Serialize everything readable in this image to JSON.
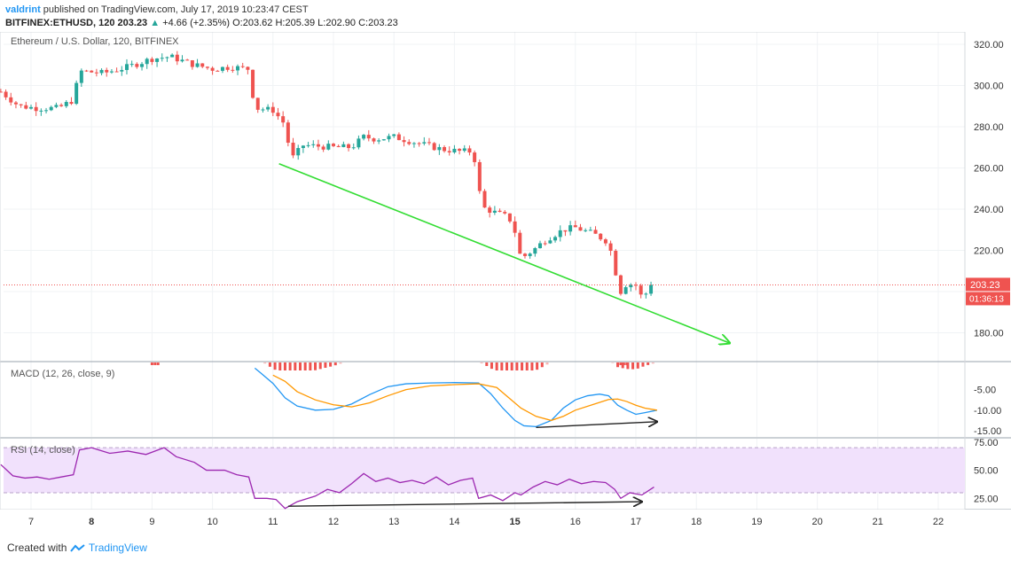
{
  "header": {
    "user": "valdrint",
    "published": "published on TradingView.com, July 17, 2019 10:23:47 CEST",
    "symbol": "BITFINEX:ETHUSD, 120",
    "last": "203.23",
    "change_arrow": "▲",
    "change": "+4.66 (+2.35%)",
    "o_label": "O:",
    "o": "203.62",
    "h_label": "H:",
    "h": "205.39",
    "l_label": "L:",
    "l": "202.90",
    "c_label": "C:",
    "c": "203.23"
  },
  "footer": {
    "created_with": "Created with",
    "brand": "TradingView"
  },
  "colors": {
    "up": "#26a69a",
    "down": "#ef5350",
    "trend": "#33dd33",
    "arrow": "#222222",
    "macd": "#2196f3",
    "signal": "#ff9800",
    "rsi": "#9c27b0",
    "rsi_band": "#f1e1fc"
  },
  "chart_data": [
    {
      "type": "candlestick",
      "title": "Ethereum / U.S. Dollar, 120, BITFINEX",
      "x_ticks": [
        "7",
        "8",
        "9",
        "10",
        "11",
        "12",
        "13",
        "14",
        "15",
        "16",
        "17",
        "18",
        "19",
        "20",
        "21",
        "22"
      ],
      "x_range": [
        6.5,
        22.3
      ],
      "y_ticks": [
        "320.00",
        "300.00",
        "280.00",
        "260.00",
        "240.00",
        "220.00",
        "180.00"
      ],
      "ylim": [
        166,
        326
      ],
      "last_price_label": "203.23",
      "countdown_label": "01:36:13",
      "last_price": 203.23,
      "path": [
        [
          6.5,
          297
        ],
        [
          6.8,
          290
        ],
        [
          7.1,
          289
        ],
        [
          7.45,
          289
        ],
        [
          7.7,
          293
        ],
        [
          7.8,
          307
        ],
        [
          8.2,
          306
        ],
        [
          8.6,
          309
        ],
        [
          9.0,
          313
        ],
        [
          9.3,
          314
        ],
        [
          9.7,
          310
        ],
        [
          10.0,
          308
        ],
        [
          10.3,
          309
        ],
        [
          10.6,
          308
        ],
        [
          10.7,
          289
        ],
        [
          11.0,
          288
        ],
        [
          11.2,
          281
        ],
        [
          11.3,
          264
        ],
        [
          11.5,
          271
        ],
        [
          12.0,
          270
        ],
        [
          12.3,
          270
        ],
        [
          12.5,
          275
        ],
        [
          12.7,
          274
        ],
        [
          13.0,
          275
        ],
        [
          13.4,
          272
        ],
        [
          13.8,
          269
        ],
        [
          14.1,
          268
        ],
        [
          14.3,
          268
        ],
        [
          14.35,
          262
        ],
        [
          14.45,
          241
        ],
        [
          14.7,
          238
        ],
        [
          14.9,
          236
        ],
        [
          15.0,
          229
        ],
        [
          15.05,
          222
        ],
        [
          15.1,
          216
        ],
        [
          15.3,
          220
        ],
        [
          15.5,
          225
        ],
        [
          15.8,
          230
        ],
        [
          16.0,
          231
        ],
        [
          16.3,
          228
        ],
        [
          16.55,
          224
        ],
        [
          16.65,
          211
        ],
        [
          16.75,
          200
        ],
        [
          16.85,
          204
        ],
        [
          17.0,
          203
        ],
        [
          17.1,
          197
        ],
        [
          17.3,
          203.2
        ]
      ],
      "lines": [
        {
          "name": "",
          "from": [
            11.1,
            262
          ],
          "to": [
            18.55,
            175
          ],
          "arrow": true
        }
      ]
    },
    {
      "type": "line",
      "title": "MACD (12, 26, close, 9)",
      "y_ticks": [
        "-5.00",
        "-10.00",
        "-15.00"
      ],
      "ylim": [
        -16.5,
        1.8
      ],
      "series": [
        {
          "key": "macd",
          "points": [
            [
              10.7,
              0.2
            ],
            [
              10.8,
              -1
            ],
            [
              11.0,
              -3.5
            ],
            [
              11.2,
              -7
            ],
            [
              11.4,
              -9
            ],
            [
              11.7,
              -10
            ],
            [
              12.0,
              -9.8
            ],
            [
              12.3,
              -8.5
            ],
            [
              12.6,
              -6.2
            ],
            [
              12.9,
              -4.3
            ],
            [
              13.2,
              -3.6
            ],
            [
              13.6,
              -3.4
            ],
            [
              14.0,
              -3.3
            ],
            [
              14.4,
              -3.4
            ],
            [
              14.6,
              -6
            ],
            [
              14.8,
              -9.5
            ],
            [
              15.0,
              -12.5
            ],
            [
              15.15,
              -13.8
            ],
            [
              15.35,
              -14
            ],
            [
              15.6,
              -12.5
            ],
            [
              15.8,
              -9.5
            ],
            [
              16.0,
              -7.5
            ],
            [
              16.2,
              -6.5
            ],
            [
              16.4,
              -6.1
            ],
            [
              16.55,
              -6.5
            ],
            [
              16.7,
              -8.8
            ],
            [
              16.85,
              -10
            ],
            [
              17.0,
              -11
            ],
            [
              17.15,
              -10.6
            ],
            [
              17.35,
              -10
            ]
          ]
        },
        {
          "key": "signal",
          "points": [
            [
              11.0,
              -1.5
            ],
            [
              11.2,
              -3
            ],
            [
              11.4,
              -5.5
            ],
            [
              11.7,
              -7.5
            ],
            [
              12.0,
              -8.7
            ],
            [
              12.3,
              -9.2
            ],
            [
              12.6,
              -8.2
            ],
            [
              12.9,
              -6.5
            ],
            [
              13.2,
              -5
            ],
            [
              13.6,
              -4.1
            ],
            [
              14.0,
              -3.8
            ],
            [
              14.4,
              -3.6
            ],
            [
              14.7,
              -4.5
            ],
            [
              14.9,
              -7
            ],
            [
              15.1,
              -9.5
            ],
            [
              15.35,
              -11.5
            ],
            [
              15.6,
              -12.5
            ],
            [
              15.8,
              -11.5
            ],
            [
              16.0,
              -10
            ],
            [
              16.3,
              -8.6
            ],
            [
              16.55,
              -7.4
            ],
            [
              16.7,
              -7.3
            ],
            [
              16.85,
              -7.9
            ],
            [
              17.0,
              -8.8
            ],
            [
              17.15,
              -9.5
            ],
            [
              17.35,
              -10
            ]
          ]
        }
      ],
      "histogram_note": "",
      "lines": [
        {
          "name": "",
          "from": [
            15.35,
            -14.2
          ],
          "to": [
            17.35,
            -12.8
          ],
          "arrow": true
        }
      ]
    },
    {
      "type": "line",
      "title": "RSI (14, close)",
      "y_ticks": [
        "75.00",
        "50.00",
        "25.00"
      ],
      "ylim": [
        15,
        78
      ],
      "band": [
        30,
        70
      ],
      "series": [
        {
          "key": "rsi",
          "points": [
            [
              6.5,
              55
            ],
            [
              6.7,
              45
            ],
            [
              6.9,
              43
            ],
            [
              7.1,
              44
            ],
            [
              7.3,
              42
            ],
            [
              7.5,
              44
            ],
            [
              7.7,
              46
            ],
            [
              7.8,
              68
            ],
            [
              8.0,
              70
            ],
            [
              8.3,
              65
            ],
            [
              8.6,
              67
            ],
            [
              8.9,
              64
            ],
            [
              9.2,
              70
            ],
            [
              9.4,
              62
            ],
            [
              9.7,
              57
            ],
            [
              9.9,
              50
            ],
            [
              10.2,
              50
            ],
            [
              10.4,
              46
            ],
            [
              10.6,
              44
            ],
            [
              10.7,
              25
            ],
            [
              10.9,
              25
            ],
            [
              11.05,
              24
            ],
            [
              11.2,
              16
            ],
            [
              11.4,
              22
            ],
            [
              11.7,
              27
            ],
            [
              11.9,
              33
            ],
            [
              12.1,
              30
            ],
            [
              12.3,
              38
            ],
            [
              12.5,
              47
            ],
            [
              12.7,
              40
            ],
            [
              12.9,
              43
            ],
            [
              13.1,
              39
            ],
            [
              13.3,
              41
            ],
            [
              13.5,
              38
            ],
            [
              13.7,
              44
            ],
            [
              13.9,
              37
            ],
            [
              14.1,
              41
            ],
            [
              14.3,
              43
            ],
            [
              14.4,
              25
            ],
            [
              14.6,
              28
            ],
            [
              14.8,
              23
            ],
            [
              15.0,
              30
            ],
            [
              15.1,
              28
            ],
            [
              15.3,
              35
            ],
            [
              15.5,
              40
            ],
            [
              15.7,
              37
            ],
            [
              15.9,
              42
            ],
            [
              16.1,
              38
            ],
            [
              16.3,
              40
            ],
            [
              16.5,
              39
            ],
            [
              16.65,
              33
            ],
            [
              16.75,
              25
            ],
            [
              16.9,
              30
            ],
            [
              17.0,
              29
            ],
            [
              17.1,
              28
            ],
            [
              17.3,
              35
            ]
          ]
        }
      ],
      "lines": [
        {
          "name": "",
          "from": [
            11.25,
            18
          ],
          "to": [
            17.1,
            22
          ],
          "arrow": true
        }
      ]
    }
  ]
}
